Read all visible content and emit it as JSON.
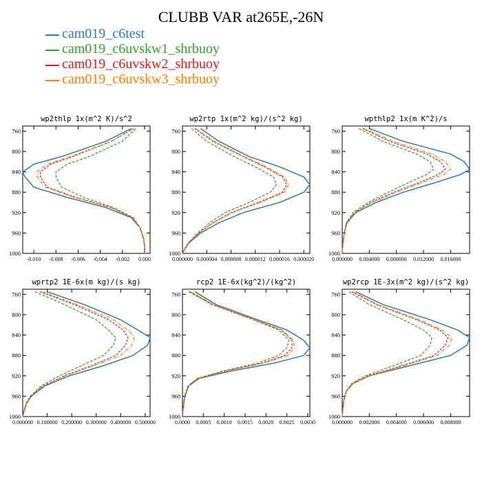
{
  "title": "CLUBB VAR at265E,-26N",
  "legend": [
    {
      "label": "cam019_c6test",
      "color": "#2f7ab9"
    },
    {
      "label": "cam019_c6uvskw1_shrbuoy",
      "color": "#33a02c"
    },
    {
      "label": "cam019_c6uvskw2_shrbuoy",
      "color": "#e31a1c"
    },
    {
      "label": "cam019_c6uvskw3_shrbuoy",
      "color": "#ff7f00"
    }
  ],
  "chart_data": [
    {
      "type": "line",
      "title": "wp2thlp  1x(m^2 K)/s^2",
      "xlim": [
        -0.011,
        0.0005
      ],
      "ylim": [
        1000,
        750
      ],
      "yticks": [
        760,
        800,
        840,
        880,
        920,
        960,
        1000
      ],
      "xticks": [
        -0.01,
        -0.008,
        -0.006,
        -0.004,
        -0.002,
        0.0
      ],
      "xtick_labels": [
        "-0.010",
        "-0.008",
        "-0.006",
        "-0.004",
        "-0.002",
        "0.000"
      ],
      "y": [
        755,
        780,
        810,
        825,
        840,
        850,
        870,
        890,
        910,
        930,
        950,
        970,
        985,
        1000
      ],
      "series": [
        {
          "values": [
            -0.0012,
            -0.0035,
            -0.0075,
            -0.01,
            -0.011,
            -0.0108,
            -0.01,
            -0.007,
            -0.0035,
            -0.0012,
            -0.0004,
            -0.0001,
            0.0,
            0.0
          ]
        },
        {
          "values": [
            -0.0008,
            -0.002,
            -0.005,
            -0.007,
            -0.008,
            -0.008,
            -0.0075,
            -0.0055,
            -0.0028,
            -0.001,
            -0.0004,
            -0.0001,
            0.0,
            0.0
          ]
        },
        {
          "values": [
            -0.001,
            -0.003,
            -0.0065,
            -0.0085,
            -0.0094,
            -0.0094,
            -0.0088,
            -0.0062,
            -0.003,
            -0.0011,
            -0.0004,
            -0.0001,
            0.0,
            0.0
          ]
        },
        {
          "values": [
            -0.001,
            -0.003,
            -0.0067,
            -0.0088,
            -0.0097,
            -0.0097,
            -0.009,
            -0.0064,
            -0.0031,
            -0.0011,
            -0.0004,
            -0.0001,
            0.0,
            0.0
          ]
        }
      ]
    },
    {
      "type": "line",
      "title": "wp2rtp  1x(m^2 kg)/(s^2 kg)",
      "xlim": [
        0,
        2.1e-05
      ],
      "ylim": [
        1000,
        750
      ],
      "yticks": [
        760,
        800,
        840,
        880,
        920,
        960,
        1000
      ],
      "xticks": [
        0,
        4e-06,
        8e-06,
        1.2e-05,
        1.6e-05,
        2e-05
      ],
      "xtick_labels": [
        "0.000000",
        "0.000004",
        "0.000008",
        "0.000012",
        "0.000016",
        "0.000020"
      ],
      "y": [
        755,
        780,
        810,
        830,
        850,
        865,
        880,
        900,
        920,
        940,
        960,
        980,
        995,
        1000
      ],
      "series": [
        {
          "values": [
            3e-06,
            6e-06,
            1.1e-05,
            1.6e-05,
            2e-05,
            2.1e-05,
            2e-05,
            1.6e-05,
            1e-05,
            6e-06,
            3e-06,
            1e-06,
            2e-07,
            0.0
          ]
        },
        {
          "values": [
            1.5e-06,
            4e-06,
            8.5e-06,
            1.2e-05,
            1.5e-05,
            1.55e-05,
            1.45e-05,
            1.1e-05,
            7e-06,
            4.5e-06,
            2.5e-06,
            9e-07,
            2e-07,
            0.0
          ]
        },
        {
          "values": [
            2e-06,
            5e-06,
            1e-05,
            1.35e-05,
            1.65e-05,
            1.72e-05,
            1.65e-05,
            1.25e-05,
            8e-06,
            5e-06,
            2.7e-06,
            9e-07,
            2e-07,
            0.0
          ]
        },
        {
          "values": [
            2.2e-06,
            5.2e-06,
            1.02e-05,
            1.38e-05,
            1.68e-05,
            1.75e-05,
            1.68e-05,
            1.28e-05,
            8.2e-06,
            5.1e-06,
            2.7e-06,
            9e-07,
            2e-07,
            0.0
          ]
        }
      ]
    },
    {
      "type": "line",
      "title": "wpthlp2  1x(m K^2)/s",
      "xlim": [
        0,
        0.0188
      ],
      "ylim": [
        1000,
        750
      ],
      "yticks": [
        760,
        800,
        840,
        880,
        920,
        960,
        1000
      ],
      "xticks": [
        0,
        0.004,
        0.008,
        0.012,
        0.016
      ],
      "xtick_labels": [
        "0.000000",
        "0.004000",
        "0.008000",
        "0.012000",
        "0.016000"
      ],
      "y": [
        755,
        780,
        805,
        820,
        835,
        845,
        860,
        880,
        900,
        920,
        940,
        960,
        980,
        1000
      ],
      "series": [
        {
          "values": [
            0.004,
            0.009,
            0.016,
            0.018,
            0.0188,
            0.0175,
            0.014,
            0.009,
            0.005,
            0.002,
            0.0007,
            0.0003,
            0.0001,
            0.0
          ]
        },
        {
          "values": [
            0.0025,
            0.006,
            0.011,
            0.013,
            0.0135,
            0.0125,
            0.01,
            0.0068,
            0.0038,
            0.0016,
            0.0006,
            0.0003,
            0.0001,
            0.0
          ]
        },
        {
          "values": [
            0.003,
            0.007,
            0.0125,
            0.0145,
            0.0152,
            0.0142,
            0.0115,
            0.0076,
            0.0042,
            0.0018,
            0.0006,
            0.0003,
            0.0001,
            0.0
          ]
        },
        {
          "values": [
            0.0032,
            0.0075,
            0.0132,
            0.0152,
            0.016,
            0.015,
            0.012,
            0.008,
            0.0044,
            0.0018,
            0.0006,
            0.0003,
            0.0001,
            0.0
          ]
        }
      ]
    },
    {
      "type": "line",
      "title": "wprtp2  1E-6x(m kg)/(s kg)",
      "xlim": [
        0,
        0.52
      ],
      "ylim": [
        1000,
        750
      ],
      "yticks": [
        760,
        800,
        840,
        880,
        920,
        960,
        1000
      ],
      "xticks": [
        0,
        0.1,
        0.2,
        0.3,
        0.4,
        0.5
      ],
      "xtick_labels": [
        "0.000000",
        "0.100000",
        "0.200000",
        "0.300000",
        "0.400000",
        "0.500000"
      ],
      "y": [
        755,
        780,
        810,
        830,
        845,
        860,
        880,
        900,
        920,
        940,
        960,
        975,
        990,
        1000
      ],
      "series": [
        {
          "values": [
            0.1,
            0.25,
            0.4,
            0.47,
            0.52,
            0.51,
            0.45,
            0.33,
            0.19,
            0.09,
            0.035,
            0.015,
            0.005,
            0.0
          ]
        },
        {
          "values": [
            0.05,
            0.17,
            0.3,
            0.35,
            0.38,
            0.37,
            0.33,
            0.24,
            0.15,
            0.075,
            0.03,
            0.013,
            0.004,
            0.0
          ]
        },
        {
          "values": [
            0.07,
            0.21,
            0.35,
            0.41,
            0.43,
            0.42,
            0.38,
            0.28,
            0.17,
            0.082,
            0.032,
            0.014,
            0.004,
            0.0
          ]
        },
        {
          "values": [
            0.08,
            0.22,
            0.37,
            0.43,
            0.455,
            0.445,
            0.4,
            0.29,
            0.175,
            0.085,
            0.033,
            0.014,
            0.004,
            0.0
          ]
        }
      ]
    },
    {
      "type": "line",
      "title": "rcp2  1E-6x(kg^2)/(kg^2)",
      "xlim": [
        0,
        0.00305
      ],
      "ylim": [
        1000,
        750
      ],
      "yticks": [
        760,
        800,
        840,
        880,
        920,
        960,
        1000
      ],
      "xticks": [
        0,
        0.0005,
        0.001,
        0.0015,
        0.002,
        0.0025,
        0.003
      ],
      "xtick_labels": [
        "0.0000",
        "0.0005",
        "0.0010",
        "0.0015",
        "0.0020",
        "0.0025",
        "0.0030"
      ],
      "y": [
        755,
        780,
        810,
        830,
        850,
        865,
        880,
        895,
        910,
        925,
        940,
        960,
        980,
        1000
      ],
      "series": [
        {
          "values": [
            0.0003,
            0.0008,
            0.0018,
            0.0025,
            0.0029,
            0.00305,
            0.0029,
            0.0022,
            0.0012,
            0.0004,
            0.00015,
            6e-05,
            2e-05,
            0.0
          ]
        },
        {
          "values": [
            0.00015,
            0.0007,
            0.0017,
            0.0023,
            0.00255,
            0.0025,
            0.0023,
            0.0018,
            0.001,
            0.00035,
            0.00013,
            5e-05,
            2e-05,
            0.0
          ]
        },
        {
          "values": [
            0.00018,
            0.00072,
            0.00172,
            0.00236,
            0.00262,
            0.00262,
            0.00245,
            0.0019,
            0.00105,
            0.00037,
            0.00014,
            5e-05,
            2e-05,
            0.0
          ]
        },
        {
          "values": [
            0.0002,
            0.00074,
            0.00174,
            0.00238,
            0.00265,
            0.00268,
            0.00252,
            0.00195,
            0.00108,
            0.00038,
            0.00014,
            5e-05,
            2e-05,
            0.0
          ]
        }
      ]
    },
    {
      "type": "line",
      "title": "wp2rcp  1E-3x(m^2 kg)/(s^2 kg)",
      "xlim": [
        0,
        0.0094
      ],
      "ylim": [
        1000,
        750
      ],
      "yticks": [
        760,
        800,
        840,
        880,
        920,
        960,
        1000
      ],
      "xticks": [
        0,
        0.002,
        0.004,
        0.006,
        0.008
      ],
      "xtick_labels": [
        "0.000000",
        "0.002000",
        "0.004000",
        "0.006000",
        "0.008000"
      ],
      "y": [
        755,
        780,
        810,
        830,
        845,
        860,
        880,
        900,
        920,
        935,
        950,
        970,
        990,
        1000
      ],
      "series": [
        {
          "values": [
            0.001,
            0.003,
            0.0065,
            0.0085,
            0.0094,
            0.0092,
            0.008,
            0.005,
            0.002,
            0.0008,
            0.0003,
            0.0001,
            3e-05,
            0.0
          ]
        },
        {
          "values": [
            0.0005,
            0.002,
            0.0045,
            0.006,
            0.0066,
            0.0065,
            0.0058,
            0.0038,
            0.0017,
            0.0007,
            0.0003,
            0.0001,
            3e-05,
            0.0
          ]
        },
        {
          "values": [
            0.0007,
            0.0025,
            0.0055,
            0.0072,
            0.0078,
            0.0076,
            0.0068,
            0.0044,
            0.0019,
            0.0008,
            0.0003,
            0.0001,
            3e-05,
            0.0
          ]
        },
        {
          "values": [
            0.0008,
            0.0026,
            0.0057,
            0.0074,
            0.0081,
            0.0079,
            0.007,
            0.0046,
            0.002,
            0.0008,
            0.0003,
            0.0001,
            3e-05,
            0.0
          ]
        }
      ]
    }
  ]
}
